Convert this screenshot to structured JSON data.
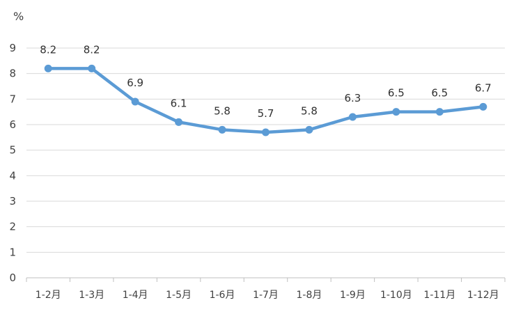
{
  "chart_data": {
    "type": "line",
    "unit": "%",
    "categories": [
      "1-2月",
      "1-3月",
      "1-4月",
      "1-5月",
      "1-6月",
      "1-7月",
      "1-8月",
      "1-9月",
      "1-10月",
      "1-11月",
      "1-12月"
    ],
    "series": [
      {
        "values": [
          8.2,
          8.2,
          6.9,
          6.1,
          5.8,
          5.7,
          5.8,
          6.3,
          6.5,
          6.5,
          6.7
        ],
        "labels": [
          "8.2",
          "8.2",
          "6.9",
          "6.1",
          "5.8",
          "5.7",
          "5.8",
          "6.3",
          "6.5",
          "6.5",
          "6.7"
        ],
        "color": "#5b9bd5"
      }
    ],
    "ylim": [
      0,
      9
    ],
    "yticks": [
      "0",
      "1",
      "2",
      "3",
      "4",
      "5",
      "6",
      "7",
      "8",
      "9"
    ],
    "grid": true,
    "legend": "none",
    "colors": {
      "grid": "#d9d9d9",
      "axis": "#bfbfbf",
      "line": "#5b9bd5"
    }
  }
}
